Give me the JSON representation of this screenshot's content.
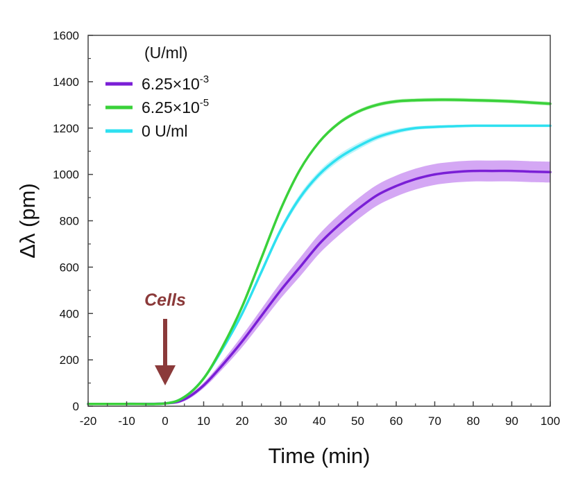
{
  "chart_data": {
    "type": "line",
    "xlabel": "Time (min)",
    "ylabel": "Δλ (pm)",
    "xlim": [
      -20,
      100
    ],
    "ylim": [
      0,
      1600
    ],
    "xticks": [
      "-20",
      "-10",
      "0",
      "10",
      "20",
      "30",
      "40",
      "50",
      "60",
      "70",
      "80",
      "90",
      "100"
    ],
    "yticks": [
      "0",
      "200",
      "400",
      "600",
      "800",
      "1000",
      "1200",
      "1400",
      "1600"
    ],
    "grid": false,
    "legend": {
      "title": "(U/ml)",
      "placement": "top-left",
      "entries": [
        {
          "base": "6.25×10",
          "sup": "-3"
        },
        {
          "base": "6.25×10",
          "sup": "-5"
        },
        {
          "base": "0 U/ml",
          "sup": ""
        }
      ]
    },
    "annotation": {
      "text": "Cells",
      "x": 0,
      "color": "#8b3a3a"
    },
    "x": [
      -20,
      -10,
      0,
      5,
      10,
      15,
      20,
      25,
      30,
      35,
      40,
      45,
      50,
      55,
      60,
      65,
      70,
      75,
      80,
      85,
      90,
      95,
      100
    ],
    "series": [
      {
        "color": "#7a1fd6",
        "band_color": "#c58af0",
        "values": [
          10,
          10,
          12,
          30,
          90,
          180,
          280,
          390,
          500,
          600,
          700,
          780,
          850,
          910,
          950,
          980,
          1000,
          1010,
          1015,
          1015,
          1015,
          1012,
          1010
        ],
        "band": [
          2,
          2,
          5,
          8,
          12,
          18,
          25,
          30,
          35,
          40,
          42,
          44,
          45,
          45,
          45,
          45,
          45,
          45,
          45,
          45,
          45,
          45,
          45
        ]
      },
      {
        "color": "#3ad13a",
        "band_color": "#9aee9a",
        "values": [
          10,
          10,
          12,
          40,
          120,
          260,
          430,
          640,
          850,
          1020,
          1140,
          1220,
          1270,
          1300,
          1315,
          1320,
          1322,
          1322,
          1320,
          1318,
          1315,
          1310,
          1305
        ],
        "band": [
          1,
          1,
          2,
          3,
          4,
          5,
          6,
          7,
          8,
          8,
          8,
          8,
          8,
          8,
          8,
          8,
          8,
          8,
          8,
          8,
          8,
          8,
          8
        ]
      },
      {
        "color": "#2ee0f0",
        "band_color": "#a8f2f8",
        "values": [
          10,
          10,
          12,
          40,
          120,
          250,
          400,
          580,
          760,
          900,
          1000,
          1070,
          1120,
          1160,
          1185,
          1200,
          1205,
          1208,
          1210,
          1210,
          1210,
          1210,
          1210
        ],
        "band": [
          1,
          1,
          2,
          4,
          6,
          8,
          10,
          12,
          14,
          15,
          15,
          15,
          14,
          12,
          10,
          8,
          7,
          6,
          5,
          5,
          5,
          5,
          5
        ]
      }
    ]
  }
}
